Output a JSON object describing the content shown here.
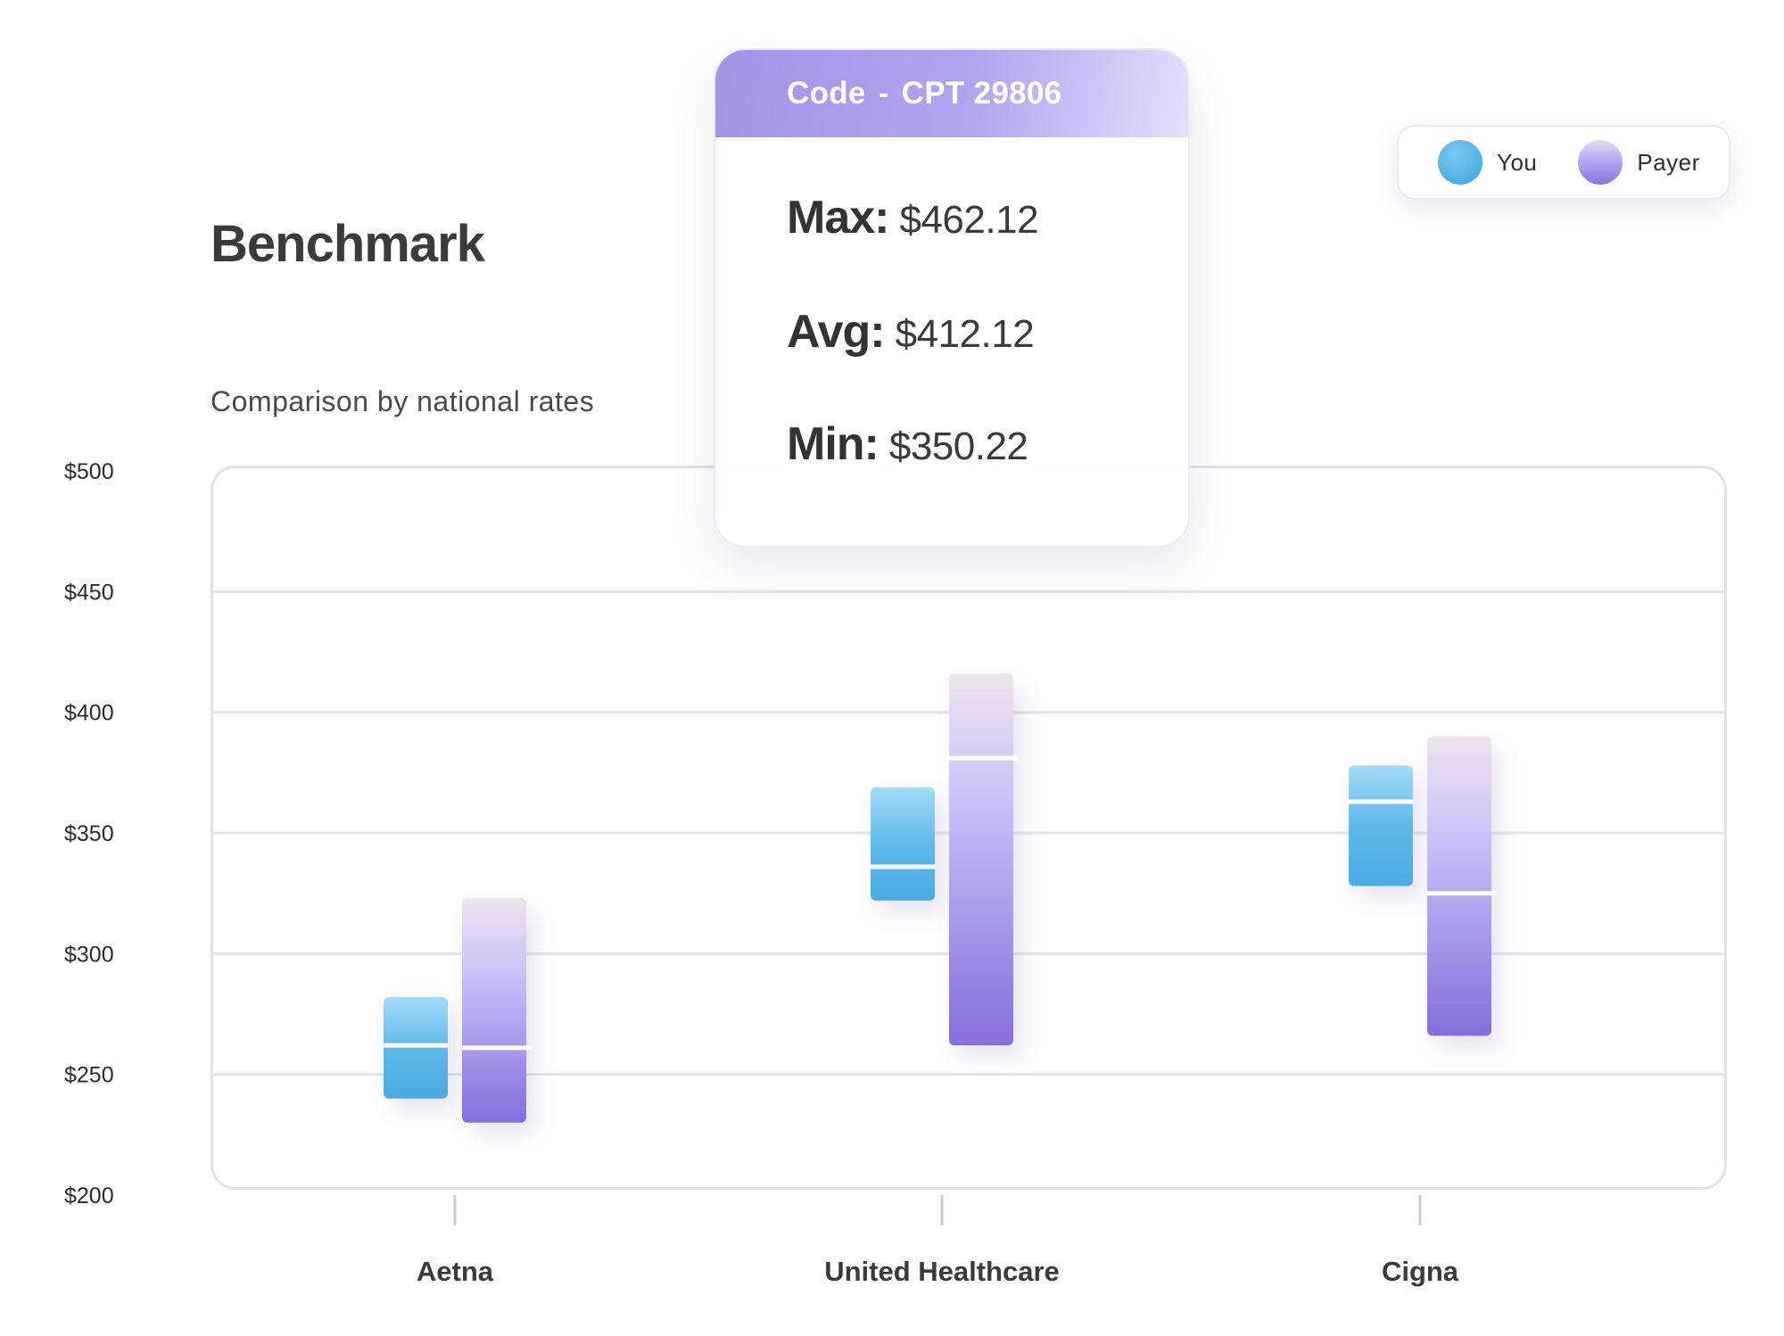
{
  "header": {
    "title": "Benchmark",
    "subtitle": "Comparison by national rates"
  },
  "legend": {
    "items": [
      {
        "label": "You",
        "color": "#4aaee4"
      },
      {
        "label": "Payer",
        "color": "#9a86e6"
      }
    ]
  },
  "tooltip": {
    "code_label": "Code",
    "separator": "-",
    "code_value": "CPT 29806",
    "rows": [
      {
        "label": "Max:",
        "value": "$462.12"
      },
      {
        "label": "Avg:",
        "value": "$412.12"
      },
      {
        "label": "Min:",
        "value": "$350.22"
      }
    ]
  },
  "chart_data": {
    "type": "range-bar",
    "ylim": [
      200,
      500
    ],
    "y_ticks": [
      200,
      250,
      300,
      350,
      400,
      450,
      500
    ],
    "y_tick_labels": [
      "$200",
      "$250",
      "$300",
      "$350",
      "$400",
      "$450",
      "$500"
    ],
    "categories": [
      "Aetna",
      "United Healthcare",
      "Cigna"
    ],
    "series": [
      {
        "name": "You",
        "colors": {
          "top": "#a4dbf7",
          "bottom": "#48ace2"
        },
        "values": [
          {
            "min": 240,
            "avg": 262,
            "max": 282
          },
          {
            "min": 322,
            "avg": 336,
            "max": 369
          },
          {
            "min": 328,
            "avg": 363,
            "max": 378
          }
        ]
      },
      {
        "name": "Payer",
        "colors": {
          "top": "#f0e3ee",
          "mid": "#c8c0f8",
          "bottom": "#866ddb"
        },
        "values": [
          {
            "min": 230,
            "avg": 261,
            "max": 323
          },
          {
            "min": 262,
            "avg": 381,
            "max": 416
          },
          {
            "min": 266,
            "avg": 325,
            "max": 390
          }
        ]
      }
    ],
    "grid": true
  }
}
